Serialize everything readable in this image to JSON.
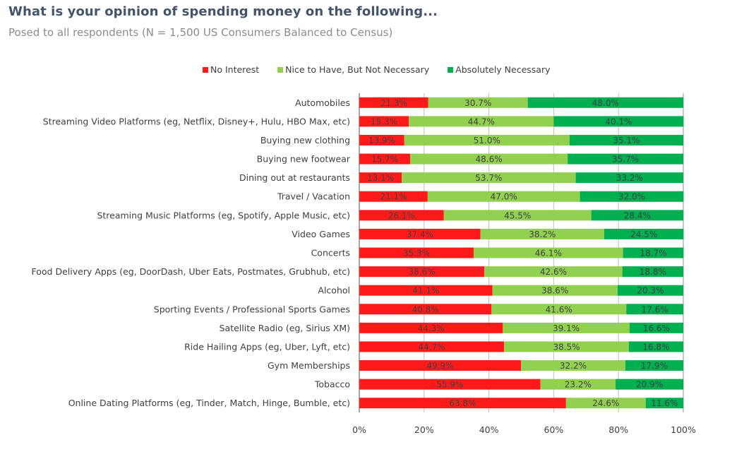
{
  "chart_data": {
    "type": "bar",
    "orientation": "horizontal",
    "stacked": true,
    "title": "What is your opinion of spending money on the following...",
    "subtitle": "Posed to all respondents (N = 1,500 US Consumers Balanced to Census)",
    "xlabel": "",
    "ylabel": "",
    "xlim": [
      0,
      100
    ],
    "xticks": [
      "0%",
      "20%",
      "40%",
      "60%",
      "80%",
      "100%"
    ],
    "grid": true,
    "legend_position": "top",
    "categories": [
      "Automobiles",
      "Streaming Video Platforms (eg, Netflix, Disney+, Hulu, HBO Max, etc)",
      "Buying new clothing",
      "Buying new footwear",
      "Dining out at restaurants",
      "Travel / Vacation",
      "Streaming Music Platforms (eg, Spotify, Apple Music, etc)",
      "Video Games",
      "Concerts",
      "Food Delivery Apps (eg, DoorDash, Uber Eats, Postmates, Grubhub, etc)",
      "Alcohol",
      "Sporting Events / Professional Sports Games",
      "Satellite Radio (eg, Sirius XM)",
      "Ride Hailing Apps (eg, Uber, Lyft, etc)",
      "Gym Memberships",
      "Tobacco",
      "Online Dating Platforms (eg, Tinder, Match, Hinge, Bumble, etc)"
    ],
    "series": [
      {
        "name": "No Interest",
        "color": "#ff1a1a",
        "values": [
          21.3,
          15.3,
          13.9,
          15.7,
          13.1,
          21.1,
          26.1,
          37.4,
          35.3,
          38.6,
          41.1,
          40.8,
          44.3,
          44.7,
          49.9,
          55.9,
          63.8
        ]
      },
      {
        "name": "Nice to Have, But Not Necessary",
        "color": "#92d050",
        "values": [
          30.7,
          44.7,
          51.0,
          48.6,
          53.7,
          47.0,
          45.5,
          38.2,
          46.1,
          42.6,
          38.6,
          41.6,
          39.1,
          38.5,
          32.2,
          23.2,
          24.6
        ]
      },
      {
        "name": "Absolutely Necessary",
        "color": "#00b050",
        "values": [
          48.0,
          40.1,
          35.1,
          35.7,
          33.2,
          32.0,
          28.4,
          24.5,
          18.7,
          18.8,
          20.3,
          17.6,
          16.6,
          16.8,
          17.9,
          20.9,
          11.6
        ]
      }
    ]
  }
}
